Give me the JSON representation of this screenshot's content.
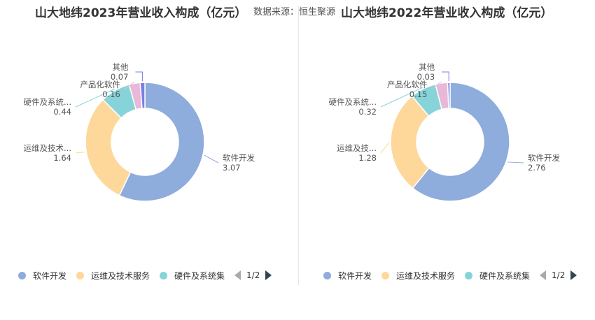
{
  "source_label": "数据来源：恒生聚源",
  "legend": {
    "items": [
      {
        "label": "软件开发",
        "color": "#8eacdc"
      },
      {
        "label": "运维及技术服务",
        "color": "#fdd89a"
      },
      {
        "label": "硬件及系统集",
        "color": "#86d4d9"
      }
    ],
    "page": "1/2"
  },
  "chart_data": [
    {
      "type": "pie",
      "title": "山大地纬2023年营业收入构成（亿元）",
      "categories": [
        "软件开发",
        "运维及技术服务",
        "硬件及系统集成",
        "产品化软件",
        "其他"
      ],
      "label_texts": [
        "软件开发",
        "运维及技术...",
        "硬件及系统...",
        "产品化软件",
        "其他"
      ],
      "values": [
        3.07,
        1.64,
        0.44,
        0.16,
        0.07
      ],
      "value_labels": [
        "3.07",
        "1.64",
        "0.44",
        "0.16",
        "0.07"
      ],
      "colors": [
        "#8eacdc",
        "#fdd89a",
        "#86d4d9",
        "#e8b8d8",
        "#7b7fe3"
      ]
    },
    {
      "type": "pie",
      "title": "山大地纬2022年营业收入构成（亿元）",
      "categories": [
        "软件开发",
        "运维及技术服务",
        "硬件及系统集成",
        "产品化软件",
        "其他"
      ],
      "label_texts": [
        "软件开发",
        "运维及技...",
        "硬件及系统...",
        "产品化软件",
        "其他"
      ],
      "values": [
        2.76,
        1.28,
        0.32,
        0.15,
        0.03
      ],
      "value_labels": [
        "2.76",
        "1.28",
        "0.32",
        "0.15",
        "0.03"
      ],
      "colors": [
        "#8eacdc",
        "#fdd89a",
        "#86d4d9",
        "#e8b8d8",
        "#7b7fe3"
      ]
    }
  ]
}
